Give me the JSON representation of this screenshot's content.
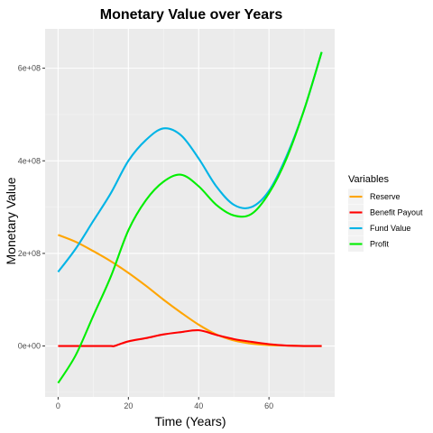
{
  "chart_data": {
    "type": "line",
    "title": "Monetary Value over Years",
    "xlabel": "Time (Years)",
    "ylabel": "Monetary Value",
    "xlim": [
      -3.7,
      78.7
    ],
    "ylim": [
      -110000000,
      685000000
    ],
    "x_ticks": [
      0,
      20,
      40,
      60
    ],
    "x_tick_labels": [
      "0",
      "20",
      "40",
      "60"
    ],
    "y_ticks": [
      0,
      200000000,
      400000000,
      600000000
    ],
    "y_tick_labels": [
      "0e+00",
      "2e+08",
      "4e+08",
      "6e+08"
    ],
    "grid": true,
    "legend": {
      "title": "Variables",
      "position": "right"
    },
    "series": [
      {
        "name": "Reserve",
        "color": "#FFA500",
        "x": [
          0,
          5,
          10,
          15,
          20,
          25,
          30,
          35,
          40,
          45,
          50,
          55,
          60,
          65,
          70,
          75
        ],
        "y": [
          240000000,
          225000000,
          205000000,
          183000000,
          158000000,
          130000000,
          100000000,
          72000000,
          46000000,
          25000000,
          12000000,
          5000000,
          2000000,
          1000000,
          0,
          0
        ]
      },
      {
        "name": "Benefit Payout",
        "color": "#FF0000",
        "x": [
          0,
          5,
          10,
          15,
          16,
          20,
          25,
          30,
          35,
          40,
          45,
          50,
          55,
          60,
          65,
          70,
          75
        ],
        "y": [
          0,
          0,
          0,
          0,
          0,
          10000000,
          17000000,
          25000000,
          30000000,
          34000000,
          24000000,
          15000000,
          9000000,
          4000000,
          1000000,
          0,
          0
        ]
      },
      {
        "name": "Fund Value",
        "color": "#00B4E6",
        "x": [
          0,
          5,
          10,
          15,
          20,
          25,
          30,
          35,
          40,
          45,
          50,
          55,
          60,
          65,
          70,
          75
        ],
        "y": [
          160000000,
          210000000,
          270000000,
          330000000,
          400000000,
          445000000,
          470000000,
          455000000,
          405000000,
          345000000,
          305000000,
          300000000,
          335000000,
          410000000,
          510000000,
          635000000
        ]
      },
      {
        "name": "Profit",
        "color": "#00EE00",
        "x": [
          0,
          5,
          10,
          15,
          20,
          25,
          30,
          35,
          40,
          45,
          50,
          55,
          60,
          65,
          70,
          75
        ],
        "y": [
          -80000000,
          -20000000,
          65000000,
          150000000,
          250000000,
          315000000,
          355000000,
          370000000,
          345000000,
          305000000,
          282000000,
          285000000,
          330000000,
          405000000,
          510000000,
          635000000
        ]
      }
    ]
  }
}
